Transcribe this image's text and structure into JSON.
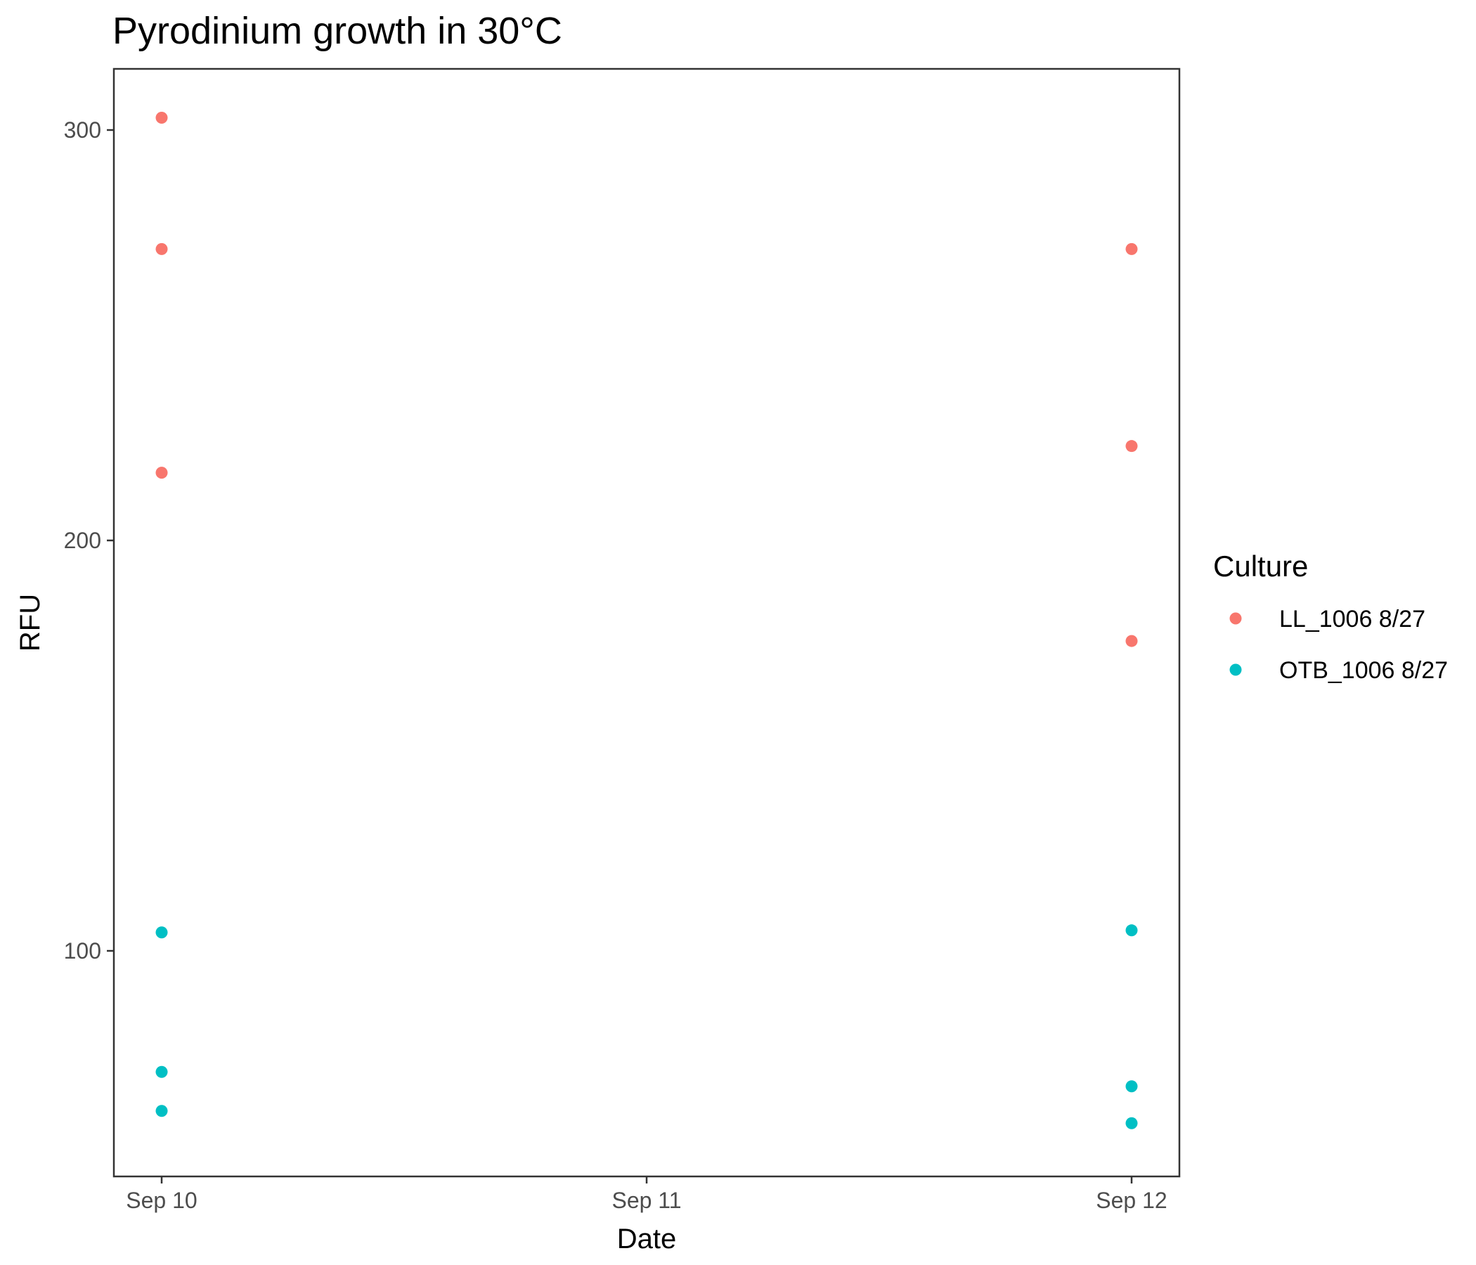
{
  "chart_data": {
    "type": "scatter",
    "title": "Pyrodinium growth in 30°C",
    "xlabel": "Date",
    "ylabel": "RFU",
    "x_ticks": [
      "Sep 10",
      "Sep 11",
      "Sep 12"
    ],
    "y_ticks": [
      100,
      200,
      300
    ],
    "ylim": [
      45,
      315
    ],
    "grid": false,
    "legend": {
      "title": "Culture",
      "position": "right"
    },
    "series": [
      {
        "name": "LL_1006 8/27",
        "color": "#F8766D",
        "points": [
          {
            "x": "Sep 10",
            "y": 303
          },
          {
            "x": "Sep 10",
            "y": 271
          },
          {
            "x": "Sep 10",
            "y": 216.5
          },
          {
            "x": "Sep 12",
            "y": 271
          },
          {
            "x": "Sep 12",
            "y": 223
          },
          {
            "x": "Sep 12",
            "y": 175.5
          }
        ]
      },
      {
        "name": "OTB_1006 8/27",
        "color": "#00BFC4",
        "points": [
          {
            "x": "Sep 10",
            "y": 104.5
          },
          {
            "x": "Sep 10",
            "y": 70.5
          },
          {
            "x": "Sep 10",
            "y": 61
          },
          {
            "x": "Sep 12",
            "y": 105
          },
          {
            "x": "Sep 12",
            "y": 67
          },
          {
            "x": "Sep 12",
            "y": 58
          }
        ]
      }
    ]
  }
}
